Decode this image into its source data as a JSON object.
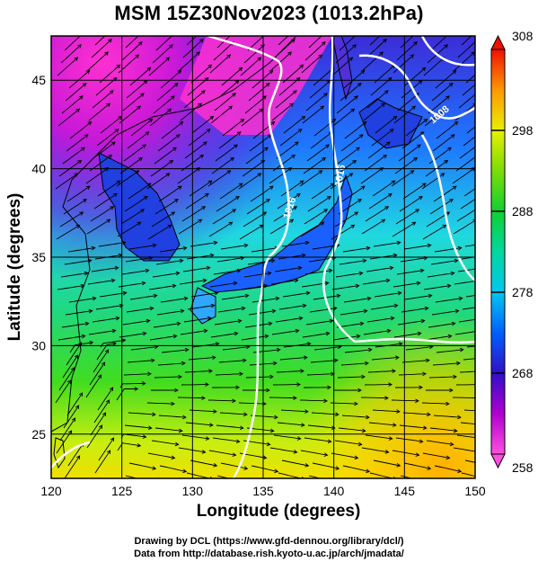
{
  "title": "MSM 15Z30Nov2023 (1013.2hPa)",
  "axes": {
    "xlabel": "Longitude (degrees)",
    "ylabel": "Latitude  (degrees)",
    "xlim": [
      120,
      150
    ],
    "ylim": [
      22.5,
      47.5
    ],
    "xticks": [
      120,
      125,
      130,
      135,
      140,
      145,
      150
    ],
    "yticks": [
      25,
      30,
      35,
      40,
      45
    ]
  },
  "colorbar": {
    "min": 258,
    "max": 308,
    "ticks": [
      258,
      268,
      278,
      288,
      298,
      308
    ],
    "colors": [
      "#ff3ed8",
      "#b000c8",
      "#3a10c8",
      "#0050ff",
      "#00d0e0",
      "#00d060",
      "#30d000",
      "#e8f000",
      "#ff9000",
      "#e01000"
    ]
  },
  "isobars": [
    {
      "label": "1016"
    },
    {
      "label": "1016"
    },
    {
      "label": "1008"
    }
  ],
  "credits": {
    "line1": "Drawing by DCL (https://www.gfd-dennou.org/library/dcl/)",
    "line2": "Data from http://database.rish.kyoto-u.ac.jp/arch/jmadata/"
  }
}
